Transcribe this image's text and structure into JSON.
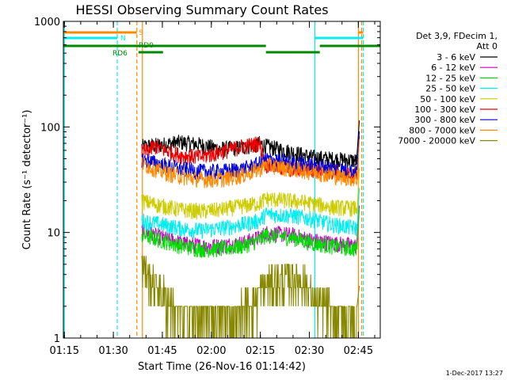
{
  "chart_data": {
    "type": "line",
    "title": "HESSI Observing Summary Count Rates",
    "xlabel": "Start Time (26-Nov-16 01:14:42)",
    "ylabel": "Count Rate (s⁻¹ detector⁻¹)",
    "x_unit": "minutes",
    "xlim": [
      "01:15",
      "02:52"
    ],
    "ylim": [
      1,
      1000
    ],
    "yscale": "log",
    "x_ticks": [
      {
        "t": 0.3,
        "label": "01:15"
      },
      {
        "t": 15.3,
        "label": "01:30"
      },
      {
        "t": 30.3,
        "label": "01:45"
      },
      {
        "t": 45.3,
        "label": "02:00"
      },
      {
        "t": 60.3,
        "label": "02:15"
      },
      {
        "t": 75.3,
        "label": "02:30"
      },
      {
        "t": 90.3,
        "label": "02:45"
      }
    ],
    "y_ticks": [
      {
        "v": 1,
        "label": "1"
      },
      {
        "v": 10,
        "label": "10"
      },
      {
        "v": 100,
        "label": "100"
      },
      {
        "v": 1000,
        "label": "1000"
      }
    ],
    "legend_header": [
      "Det 3,9, FDecim 1,",
      "Att 0"
    ],
    "legend_position": "right",
    "grid": false,
    "series": [
      {
        "name": "3 - 6 keV",
        "color": "#000000",
        "points": [
          [
            24,
            65
          ],
          [
            30,
            68
          ],
          [
            36,
            72
          ],
          [
            42,
            68
          ],
          [
            48,
            62
          ],
          [
            55,
            64
          ],
          [
            60,
            70
          ],
          [
            62,
            66
          ],
          [
            70,
            58
          ],
          [
            76,
            52
          ],
          [
            82,
            50
          ],
          [
            90,
            48
          ]
        ]
      },
      {
        "name": "6 - 12 keV",
        "color": "#cc00cc",
        "points": [
          [
            24,
            10.5
          ],
          [
            30,
            9
          ],
          [
            36,
            8
          ],
          [
            42,
            7.5
          ],
          [
            48,
            7.5
          ],
          [
            55,
            8
          ],
          [
            60,
            9
          ],
          [
            62,
            10
          ],
          [
            70,
            9.5
          ],
          [
            76,
            8.5
          ],
          [
            82,
            8
          ],
          [
            90,
            7.5
          ]
        ]
      },
      {
        "name": "12 - 25 keV",
        "color": "#00dd00",
        "points": [
          [
            24,
            9.5
          ],
          [
            30,
            8.5
          ],
          [
            36,
            7.5
          ],
          [
            42,
            7
          ],
          [
            48,
            7
          ],
          [
            55,
            7.5
          ],
          [
            60,
            8.5
          ],
          [
            62,
            9.5
          ],
          [
            70,
            9
          ],
          [
            76,
            8
          ],
          [
            82,
            7.5
          ],
          [
            90,
            7
          ]
        ]
      },
      {
        "name": "25 - 50 keV",
        "color": "#00eeee",
        "points": [
          [
            24,
            13
          ],
          [
            30,
            12
          ],
          [
            36,
            11
          ],
          [
            42,
            10.5
          ],
          [
            48,
            11
          ],
          [
            55,
            12
          ],
          [
            60,
            13
          ],
          [
            62,
            15
          ],
          [
            70,
            14.5
          ],
          [
            76,
            13.5
          ],
          [
            82,
            12
          ],
          [
            90,
            11
          ]
        ]
      },
      {
        "name": "50 - 100 keV",
        "color": "#cccc00",
        "points": [
          [
            24,
            20
          ],
          [
            30,
            18
          ],
          [
            36,
            16.5
          ],
          [
            42,
            16
          ],
          [
            48,
            16.5
          ],
          [
            55,
            18
          ],
          [
            60,
            19
          ],
          [
            62,
            21
          ],
          [
            70,
            20
          ],
          [
            76,
            19
          ],
          [
            82,
            17.5
          ],
          [
            90,
            17
          ]
        ]
      },
      {
        "name": "100 - 300 keV",
        "color": "#ee0000",
        "points": [
          [
            24,
            58
          ],
          [
            26,
            60
          ],
          [
            28,
            66
          ],
          [
            30,
            62
          ],
          [
            36,
            54
          ],
          [
            42,
            52
          ],
          [
            48,
            58
          ],
          [
            55,
            66
          ],
          [
            60,
            70
          ],
          [
            62,
            44
          ],
          [
            70,
            40
          ],
          [
            76,
            40
          ],
          [
            82,
            38
          ],
          [
            90,
            34
          ]
        ]
      },
      {
        "name": "300 - 800 keV",
        "color": "#0000dd",
        "points": [
          [
            24,
            50
          ],
          [
            30,
            44
          ],
          [
            36,
            40
          ],
          [
            42,
            38
          ],
          [
            48,
            38
          ],
          [
            55,
            40
          ],
          [
            60,
            45
          ],
          [
            62,
            50
          ],
          [
            70,
            46
          ],
          [
            76,
            44
          ],
          [
            82,
            41
          ],
          [
            90,
            38
          ]
        ]
      },
      {
        "name": "800 - 7000 keV",
        "color": "#ff8800",
        "points": [
          [
            24,
            45
          ],
          [
            30,
            38
          ],
          [
            36,
            34
          ],
          [
            42,
            32
          ],
          [
            48,
            32
          ],
          [
            55,
            35
          ],
          [
            60,
            40
          ],
          [
            62,
            44
          ],
          [
            70,
            40
          ],
          [
            76,
            38
          ],
          [
            82,
            35
          ],
          [
            90,
            32
          ]
        ]
      },
      {
        "name": "7000 - 20000 keV",
        "color": "#888800",
        "points": [
          [
            24,
            5
          ],
          [
            27,
            3.5
          ],
          [
            30,
            2.8
          ],
          [
            33,
            2
          ],
          [
            36,
            1.6
          ],
          [
            42,
            1.6
          ],
          [
            48,
            1.6
          ],
          [
            54,
            1.8
          ],
          [
            58,
            2.2
          ],
          [
            60,
            2.6
          ],
          [
            62,
            3.2
          ],
          [
            66,
            3.5
          ],
          [
            70,
            3.8
          ],
          [
            74,
            3.5
          ],
          [
            76,
            2.5
          ],
          [
            80,
            2
          ],
          [
            84,
            1.6
          ],
          [
            90,
            1.3
          ]
        ]
      }
    ],
    "flag_bars": [
      {
        "label": "S",
        "color": "#ff8800",
        "level": 1,
        "segments": [
          [
            0,
            22.5
          ],
          [
            90.3,
            91.8
          ]
        ]
      },
      {
        "label": "N",
        "color": "#00eeee",
        "level": 2,
        "segments": [
          [
            0,
            16.5
          ],
          [
            77,
            91.8
          ]
        ]
      },
      {
        "label": "RD0",
        "color": "#008800",
        "level": 3,
        "segments": [
          [
            0,
            62
          ],
          [
            78.5,
            97
          ]
        ]
      },
      {
        "label": "RD6",
        "color": "#008800",
        "level": 4,
        "segments": [
          [
            23,
            30.5
          ],
          [
            62,
            78.5
          ]
        ]
      }
    ],
    "vertical_lines": [
      {
        "t": 0.3,
        "color": "#00eeee",
        "style": "solid"
      },
      {
        "t": 16.5,
        "color": "#00eeee",
        "style": "dashed"
      },
      {
        "t": 22.5,
        "color": "#ff8800",
        "style": "dashed"
      },
      {
        "t": 24.2,
        "color": "#ff8800",
        "style": "solid"
      },
      {
        "t": 77,
        "color": "#00eeee",
        "style": "solid"
      },
      {
        "t": 90.3,
        "color": "#ff8800",
        "style": "solid"
      },
      {
        "t": 91.3,
        "color": "#ff8800",
        "style": "dashed"
      },
      {
        "t": 91.8,
        "color": "#00eeee",
        "style": "dashed"
      }
    ],
    "footer_date": "1-Dec-2017 13:27"
  }
}
